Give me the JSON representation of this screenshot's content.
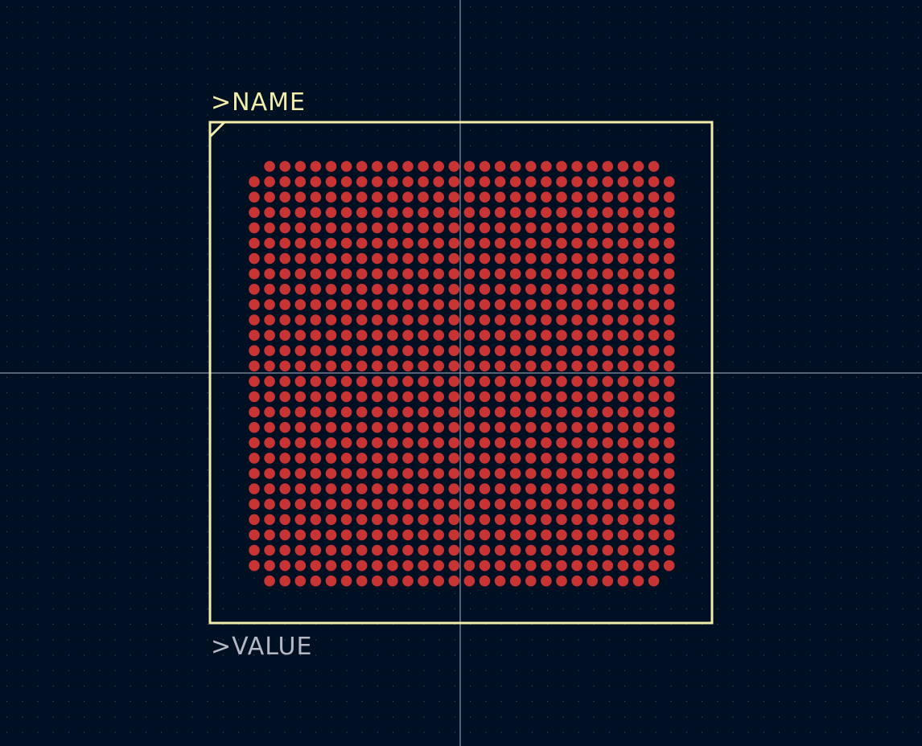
{
  "footprint": {
    "name_label": ">NAME",
    "value_label": ">VALUE",
    "grid": {
      "rows": 28,
      "cols": 28,
      "missing_corners": true
    }
  },
  "colors": {
    "background": "#001023",
    "grid_dot": "#3a4a60",
    "axis": "#a8b4c8",
    "silkscreen": "#f2eeaa",
    "value_text": "#b4b8c4",
    "pad": "#c83434"
  }
}
